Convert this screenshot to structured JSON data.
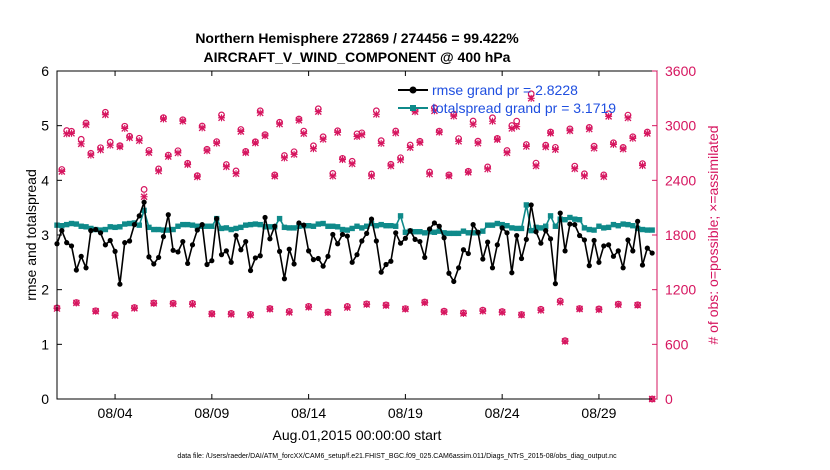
{
  "chart_data": {
    "type": "line",
    "title": "Northern Hemisphere 272869 / 274456 = 99.422%",
    "subtitle": "AIRCRAFT_V_WIND_COMPONENT @ 400 hPa",
    "xlabel": "Aug.01,2015 00:00:00 start",
    "ylabel": "rmse and totalspread",
    "y2label": "# of obs: o=possible; ×=assimilated",
    "xlim": [
      1,
      32
    ],
    "ylim": [
      0,
      6
    ],
    "y2lim": [
      0,
      3600
    ],
    "xticks": [
      4,
      9,
      14,
      19,
      24,
      29
    ],
    "xtick_labels": [
      "08/04",
      "08/09",
      "08/14",
      "08/19",
      "08/24",
      "08/29"
    ],
    "yticks": [
      "0",
      "1",
      "2",
      "3",
      "4",
      "5",
      "6"
    ],
    "y2ticks": [
      "0",
      "600",
      "1200",
      "1800",
      "2400",
      "3000",
      "3600"
    ],
    "footnote": "data file: /Users/raeder/DAI/ATM_forcXX/CAM6_setup/f.e21.FHIST_BGC.f09_025.CAM6assim.011/Diags_NTrS_2015-08/obs_diag_output.nc",
    "legend_position": "top-right",
    "colors": {
      "rmse": "#000000",
      "spread": "#0f8a8a",
      "obs": "#d6155f",
      "right_axis": "#d6155f"
    },
    "series": [
      {
        "name": "rmse grand pr = 2.8228",
        "color": "#000000",
        "markers": [],
        "values": []
      },
      {
        "name": "totalspread grand pr = 3.1719",
        "color": "#0f8a8a",
        "markers": [],
        "values": []
      }
    ],
    "obs_count_series": {
      "possible": [],
      "assimilated": []
    }
  }
}
